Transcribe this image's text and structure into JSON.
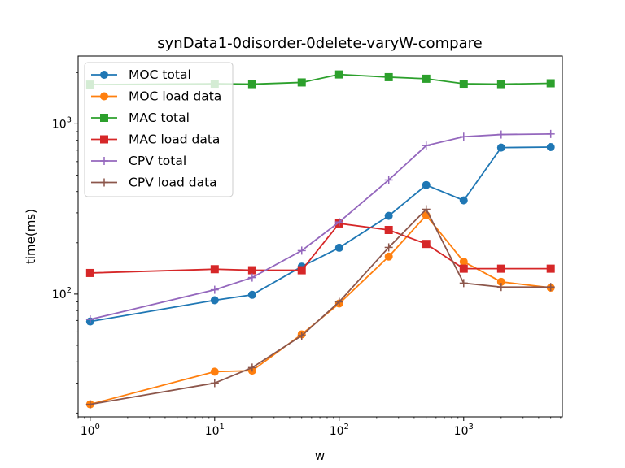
{
  "chart_data": {
    "type": "line",
    "title": "synData1-0disorder-0delete-varyW-compare",
    "xlabel": "w",
    "ylabel": "time(ms)",
    "xscale": "log",
    "yscale": "log",
    "xlim": [
      0.8,
      6200
    ],
    "ylim": [
      19,
      2500
    ],
    "x_ticks": [
      {
        "value": 1,
        "base": "10",
        "exp": "0"
      },
      {
        "value": 10,
        "base": "10",
        "exp": "1"
      },
      {
        "value": 100,
        "base": "10",
        "exp": "2"
      },
      {
        "value": 1000,
        "base": "10",
        "exp": "3"
      }
    ],
    "y_ticks": [
      {
        "value": 100,
        "base": "10",
        "exp": "2"
      },
      {
        "value": 1000,
        "base": "10",
        "exp": "3"
      }
    ],
    "x": [
      1,
      10,
      20,
      50,
      100,
      250,
      500,
      1000,
      2000,
      5000
    ],
    "grid": false,
    "legend_position": "top-left",
    "series": [
      {
        "name": "MOC total",
        "color": "#1f77b4",
        "marker": "circle",
        "values": [
          69,
          92,
          99,
          145,
          187,
          288,
          437,
          355,
          725,
          730
        ]
      },
      {
        "name": "MOC load data",
        "color": "#ff7f0e",
        "marker": "circle",
        "values": [
          22.5,
          35,
          35.5,
          58,
          88,
          166,
          290,
          155,
          118,
          109
        ]
      },
      {
        "name": "MAC total",
        "color": "#2ca02c",
        "marker": "square",
        "values": [
          1700,
          1720,
          1710,
          1750,
          1950,
          1880,
          1840,
          1720,
          1710,
          1730
        ]
      },
      {
        "name": "MAC load data",
        "color": "#d62728",
        "marker": "square",
        "values": [
          133,
          140,
          138,
          138,
          260,
          238,
          197,
          141,
          141,
          141
        ]
      },
      {
        "name": "CPV total",
        "color": "#9467bd",
        "marker": "plus",
        "values": [
          71,
          106,
          125,
          180,
          265,
          468,
          745,
          840,
          865,
          872
        ]
      },
      {
        "name": "CPV load data",
        "color": "#8c564b",
        "marker": "plus",
        "values": [
          22.5,
          30,
          37,
          57,
          90,
          188,
          315,
          116,
          110,
          110
        ]
      }
    ]
  }
}
